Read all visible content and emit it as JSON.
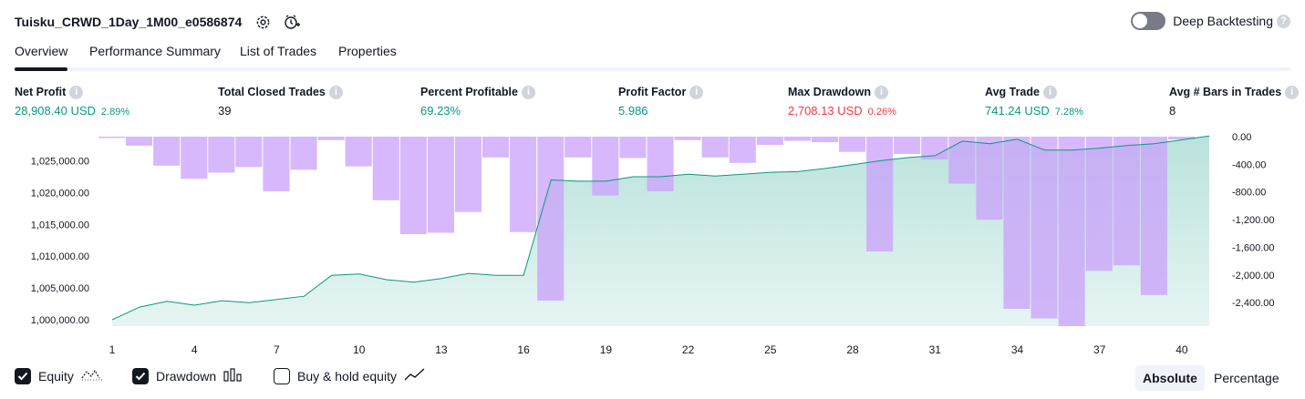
{
  "header": {
    "title": "Tuisku_CRWD_1Day_1M00_e0586874",
    "deep_backtesting_label": "Deep Backtesting"
  },
  "tabs": [
    {
      "label": "Overview",
      "active": true
    },
    {
      "label": "Performance Summary",
      "active": false
    },
    {
      "label": "List of Trades",
      "active": false
    },
    {
      "label": "Properties",
      "active": false
    }
  ],
  "metrics": [
    {
      "label": "Net Profit",
      "value": "28,908.40 USD",
      "pct": "2.89%",
      "color": "green"
    },
    {
      "label": "Total Closed Trades",
      "value": "39",
      "pct": "",
      "color": "dark"
    },
    {
      "label": "Percent Profitable",
      "value": "69.23%",
      "pct": "",
      "color": "green"
    },
    {
      "label": "Profit Factor",
      "value": "5.986",
      "pct": "",
      "color": "green"
    },
    {
      "label": "Max Drawdown",
      "value": "2,708.13 USD",
      "pct": "0.26%",
      "color": "red"
    },
    {
      "label": "Avg Trade",
      "value": "741.24 USD",
      "pct": "7.28%",
      "color": "green"
    },
    {
      "label": "Avg # Bars in Trades",
      "value": "8",
      "pct": "",
      "color": "dark"
    }
  ],
  "chart_data": {
    "type": "line",
    "x_ticks": [
      1,
      4,
      7,
      10,
      13,
      16,
      19,
      22,
      25,
      28,
      31,
      34,
      37,
      40
    ],
    "left_axis": {
      "ticks": [
        "1,000,000.00",
        "1,005,000.00",
        "1,010,000.00",
        "1,015,000.00",
        "1,020,000.00",
        "1,025,000.00"
      ],
      "ylim": [
        999000,
        1028800
      ]
    },
    "right_axis": {
      "ticks": [
        "0.00",
        "-400.00",
        "-800.00",
        "-1,200.00",
        "-1,600.00",
        "-2,000.00",
        "-2,400.00"
      ],
      "ylim": [
        -2740,
        0
      ]
    },
    "series": [
      {
        "name": "Equity",
        "type": "area",
        "values": [
          1000000,
          1002000,
          1002900,
          1002300,
          1003000,
          1002700,
          1003200,
          1003700,
          1007000,
          1007200,
          1006300,
          1005900,
          1006500,
          1007300,
          1007000,
          1007000,
          1022000,
          1021800,
          1021800,
          1022500,
          1022500,
          1022900,
          1022600,
          1022900,
          1023200,
          1023300,
          1023800,
          1024400,
          1025000,
          1025500,
          1025800,
          1028100,
          1027700,
          1028400,
          1026700,
          1026700,
          1027000,
          1027400,
          1027700,
          1028300,
          1028900
        ],
        "color": "#089981"
      },
      {
        "name": "Drawdown",
        "type": "bar",
        "values": [
          0,
          -130,
          -420,
          -610,
          -520,
          -440,
          -790,
          -480,
          -50,
          -430,
          -920,
          -1410,
          -1390,
          -1090,
          -300,
          -1380,
          -2370,
          -300,
          -850,
          -310,
          -790,
          -50,
          -300,
          -380,
          -120,
          -60,
          -80,
          -220,
          -1660,
          -250,
          -330,
          -680,
          -1200,
          -2490,
          -2630,
          -2740,
          -1940,
          -1860,
          -2290,
          -40
        ],
        "color": "#c9a0fb"
      }
    ]
  },
  "legend": {
    "items": [
      {
        "label": "Equity",
        "checked": true
      },
      {
        "label": "Drawdown",
        "checked": true
      },
      {
        "label": "Buy & hold equity",
        "checked": false
      }
    ],
    "mode_buttons": [
      {
        "label": "Absolute",
        "selected": true
      },
      {
        "label": "Percentage",
        "selected": false
      }
    ]
  }
}
